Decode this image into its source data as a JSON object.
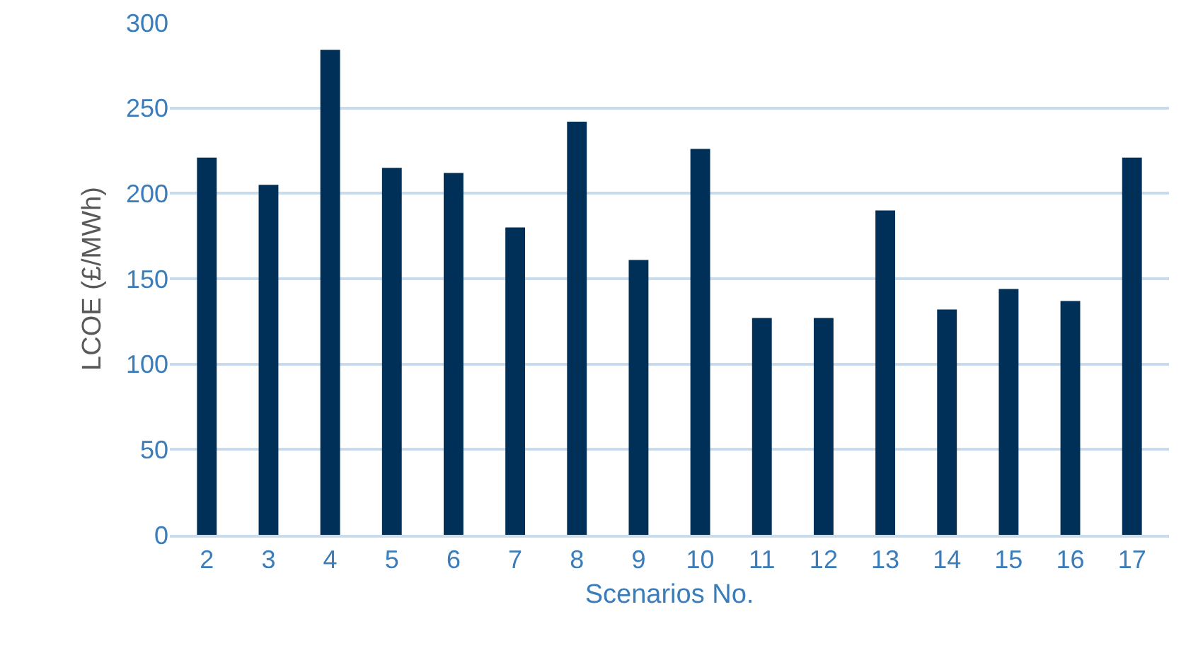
{
  "chart_data": {
    "type": "bar",
    "xlabel": "Scenarios No.",
    "ylabel": "LCOE (£/MWh)",
    "categories": [
      "2",
      "3",
      "4",
      "5",
      "6",
      "7",
      "8",
      "9",
      "10",
      "11",
      "12",
      "13",
      "14",
      "15",
      "16",
      "17"
    ],
    "values": [
      221,
      205,
      284,
      215,
      212,
      180,
      242,
      161,
      226,
      127,
      127,
      190,
      132,
      144,
      137,
      221
    ],
    "color": "#003057",
    "ylim": [
      0,
      300
    ],
    "yticks": [
      0,
      50,
      100,
      150,
      200,
      250,
      300
    ],
    "grid": "y"
  }
}
